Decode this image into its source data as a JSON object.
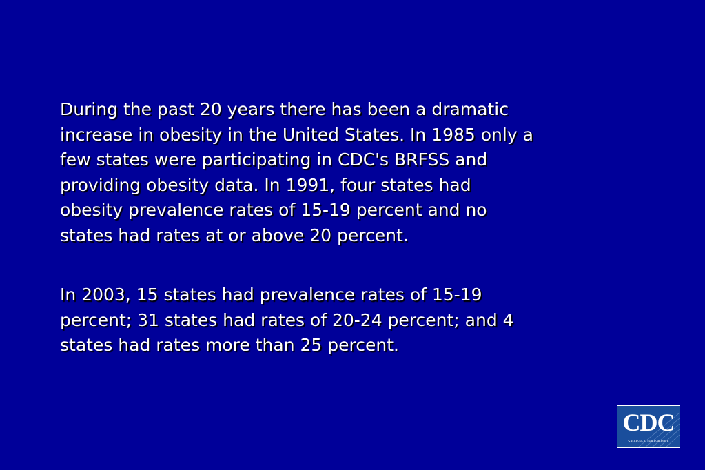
{
  "slide": {
    "paragraphs": [
      [
        "During the past 20 years there has been a dramatic",
        "increase in obesity in the United States. In 1985 only a",
        "few states were participating in CDC's BRFSS and",
        "providing obesity data. In 1991, four states had",
        "obesity prevalence rates of 15-19 percent and no",
        "states had rates at or above 20 percent."
      ],
      [
        "In 2003, 15 states had prevalence rates of 15-19",
        "percent; 31 states had rates of 20-24 percent; and 4",
        "states had rates more than 25 percent."
      ]
    ],
    "logo": {
      "name": "CDC",
      "tagline": "SAFER·HEALTHIER·PEOPLE"
    }
  }
}
